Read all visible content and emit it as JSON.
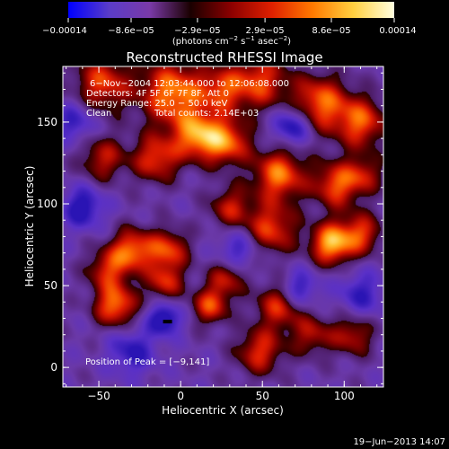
{
  "chart_data": {
    "type": "heatmap",
    "title": "Reconstructed RHESSI Image",
    "xlabel": "Heliocentric X (arcsec)",
    "ylabel": "Heliocentric Y (arcsec)",
    "xlim": [
      -72,
      124
    ],
    "ylim": [
      -12,
      184
    ],
    "x_ticks": [
      -50,
      0,
      50,
      100
    ],
    "y_ticks": [
      0,
      50,
      100,
      150
    ],
    "x_tick_labels": [
      "−50",
      "0",
      "50",
      "100"
    ],
    "y_tick_labels": [
      "0",
      "50",
      "100",
      "150"
    ],
    "colorbar": {
      "range": [
        -0.00014,
        0.00014
      ],
      "tick_values": [
        -0.00014,
        -8.6e-05,
        -2.9e-05,
        2.9e-05,
        8.6e-05,
        0.00014
      ],
      "tick_labels": [
        "−0.00014",
        "−8.6e−05",
        "−2.9e−05",
        "2.9e−05",
        "8.6e−05",
        "0.00014"
      ],
      "unit_prefix": "(photons cm",
      "unit_exp1": "−2",
      "unit_mid": " s",
      "unit_exp2": "−1",
      "unit_mid2": " asec",
      "unit_exp3": "−2",
      "unit_suffix": ")",
      "colors": [
        "#0000ff",
        "#5a3cc8",
        "#7a3aa8",
        "#1a0000",
        "#8c0000",
        "#e02000",
        "#ff7a00",
        "#ffd040",
        "#ffffe0"
      ]
    },
    "sources": [
      {
        "x": -48,
        "y": 174,
        "amp": 0.7,
        "sigma": 12
      },
      {
        "x": -5,
        "y": 168,
        "amp": 0.9,
        "sigma": 14
      },
      {
        "x": 10,
        "y": 142,
        "amp": 0.85,
        "sigma": 10
      },
      {
        "x": 48,
        "y": 175,
        "amp": 0.7,
        "sigma": 12
      },
      {
        "x": 85,
        "y": 162,
        "amp": 0.8,
        "sigma": 12
      },
      {
        "x": 110,
        "y": 150,
        "amp": 0.75,
        "sigma": 11
      },
      {
        "x": 28,
        "y": 138,
        "amp": 0.8,
        "sigma": 10
      },
      {
        "x": -15,
        "y": 128,
        "amp": 0.7,
        "sigma": 10
      },
      {
        "x": -48,
        "y": 128,
        "amp": 0.55,
        "sigma": 10
      },
      {
        "x": 60,
        "y": 118,
        "amp": 0.85,
        "sigma": 11
      },
      {
        "x": 95,
        "y": 112,
        "amp": 0.75,
        "sigma": 10
      },
      {
        "x": 92,
        "y": 76,
        "amp": 1.0,
        "sigma": 9
      },
      {
        "x": 110,
        "y": 82,
        "amp": 0.65,
        "sigma": 9
      },
      {
        "x": 55,
        "y": 85,
        "amp": 0.7,
        "sigma": 11
      },
      {
        "x": 30,
        "y": 98,
        "amp": 0.55,
        "sigma": 9
      },
      {
        "x": -30,
        "y": 72,
        "amp": 0.8,
        "sigma": 9
      },
      {
        "x": -8,
        "y": 72,
        "amp": 0.7,
        "sigma": 9
      },
      {
        "x": -45,
        "y": 60,
        "amp": 0.6,
        "sigma": 9
      },
      {
        "x": -40,
        "y": 38,
        "amp": 0.85,
        "sigma": 9
      },
      {
        "x": -10,
        "y": 52,
        "amp": 0.6,
        "sigma": 8
      },
      {
        "x": 18,
        "y": 38,
        "amp": 0.7,
        "sigma": 8
      },
      {
        "x": 28,
        "y": 55,
        "amp": 0.55,
        "sigma": 8
      },
      {
        "x": 60,
        "y": 38,
        "amp": 0.65,
        "sigma": 10
      },
      {
        "x": 48,
        "y": 10,
        "amp": 0.65,
        "sigma": 10
      },
      {
        "x": 80,
        "y": 20,
        "amp": 0.5,
        "sigma": 9
      },
      {
        "x": 105,
        "y": 20,
        "amp": 0.55,
        "sigma": 9
      },
      {
        "x": 112,
        "y": 118,
        "amp": 0.5,
        "sigma": 8
      },
      {
        "x": 25,
        "y": 170,
        "amp": 0.6,
        "sigma": 10
      },
      {
        "x": -60,
        "y": 98,
        "amp": -0.6,
        "sigma": 9
      },
      {
        "x": -10,
        "y": 30,
        "amp": -0.7,
        "sigma": 7
      },
      {
        "x": 68,
        "y": 148,
        "amp": -0.65,
        "sigma": 8
      },
      {
        "x": 72,
        "y": 48,
        "amp": -0.55,
        "sigma": 8
      },
      {
        "x": -30,
        "y": 10,
        "amp": -0.5,
        "sigma": 10
      },
      {
        "x": 110,
        "y": 45,
        "amp": -0.45,
        "sigma": 10
      },
      {
        "x": -65,
        "y": 150,
        "amp": -0.45,
        "sigma": 9
      },
      {
        "x": 35,
        "y": 72,
        "amp": -0.45,
        "sigma": 9
      }
    ],
    "annotations": {
      "time": "6−Nov−2004 12:03:44.000 to 12:06:08.000",
      "detectors": "Detectors: 4F 5F 6F 7F 8F, Att 0",
      "energy": "Energy Range: 25.0 − 50.0 keV",
      "clean": "Clean",
      "counts": "Total counts: 2.14E+03",
      "peak": "Position of Peak = [−9,141]"
    },
    "footer_timestamp": "19−Jun−2013 14:07"
  }
}
